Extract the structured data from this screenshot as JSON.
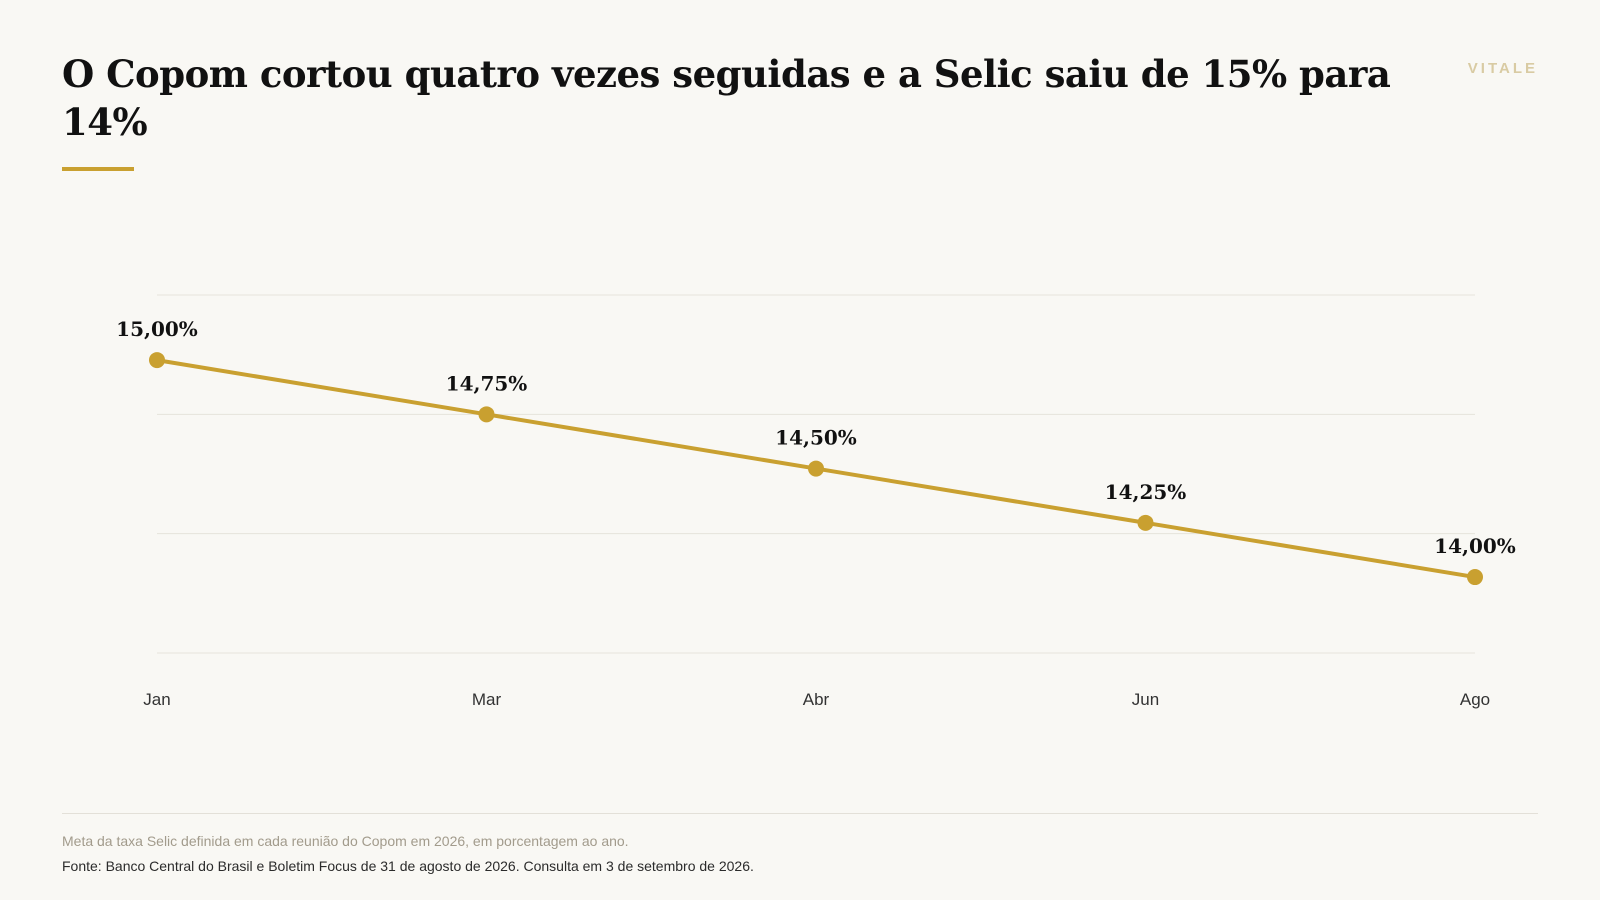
{
  "header": {
    "title": "O Copom cortou quatro vezes seguidas e a Selic saiu de 15% para 14%",
    "brand": "VITALE"
  },
  "colors": {
    "accent": "#c9a030",
    "background": "#f9f8f4",
    "grid": "#e6e3db",
    "text": "#111111",
    "muted": "#a29b8c"
  },
  "chart_data": {
    "type": "line",
    "categories": [
      "Jan",
      "Mar",
      "Abr",
      "Jun",
      "Ago"
    ],
    "series": [
      {
        "values": [
          15.0,
          14.75,
          14.5,
          14.25,
          14.0
        ],
        "labels": [
          "15,00%",
          "14,75%",
          "14,50%",
          "14,25%",
          "14,00%"
        ]
      }
    ],
    "ylim": [
      13.65,
      15.3
    ],
    "gridlines": [
      15.3,
      14.75,
      14.2,
      13.65
    ],
    "grid": true,
    "xlabel": "",
    "ylabel": ""
  },
  "footer": {
    "note": "Meta da taxa Selic definida em cada reunião do Copom em 2026, em porcentagem ao ano.",
    "source": "Fonte: Banco Central do Brasil e Boletim Focus de 31 de agosto de 2026. Consulta em 3 de setembro de 2026."
  }
}
